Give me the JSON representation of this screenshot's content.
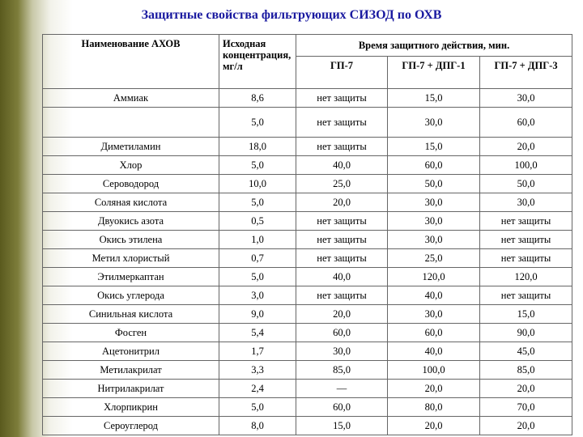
{
  "title": "Защитные свойства фильтрующих СИЗОД по ОХВ",
  "header": {
    "col_name": "Наименование АХОВ",
    "col_conc": "Исходная концентрация, мг/л",
    "col_time": "Время защитного действия, мин.",
    "sub1": "ГП-7",
    "sub2": "ГП-7 + ДПГ-1",
    "sub3": "ГП-7 + ДПГ-3"
  },
  "rows": [
    {
      "name": "Аммиак",
      "conc": "8,6",
      "gp7": "нет защиты",
      "dpg1": "15,0",
      "dpg3": "30,0"
    },
    {
      "name": "",
      "conc": "5,0",
      "gp7": "нет защиты",
      "dpg1": "30,0",
      "dpg3": "60,0"
    },
    {
      "name": "Диметиламин",
      "conc": "18,0",
      "gp7": "нет защиты",
      "dpg1": "15,0",
      "dpg3": "20,0"
    },
    {
      "name": "Хлор",
      "conc": "5,0",
      "gp7": "40,0",
      "dpg1": "60,0",
      "dpg3": "100,0"
    },
    {
      "name": "Сероводород",
      "conc": "10,0",
      "gp7": "25,0",
      "dpg1": "50,0",
      "dpg3": "50,0"
    },
    {
      "name": "Соляная кислота",
      "conc": "5,0",
      "gp7": "20,0",
      "dpg1": "30,0",
      "dpg3": "30,0"
    },
    {
      "name": "Двуокись азота",
      "conc": "0,5",
      "gp7": "нет защиты",
      "dpg1": "30,0",
      "dpg3": "нет защиты"
    },
    {
      "name": "Окись этилена",
      "conc": "1,0",
      "gp7": "нет защиты",
      "dpg1": "30,0",
      "dpg3": "нет защиты"
    },
    {
      "name": "Метил хлористый",
      "conc": "0,7",
      "gp7": "нет защиты",
      "dpg1": "25,0",
      "dpg3": "нет защиты"
    },
    {
      "name": "Этилмеркаптан",
      "conc": "5,0",
      "gp7": "40,0",
      "dpg1": "120,0",
      "dpg3": "120,0"
    },
    {
      "name": "Окись углерода",
      "conc": "3,0",
      "gp7": "нет защиты",
      "dpg1": "40,0",
      "dpg3": "нет защиты"
    },
    {
      "name": "Синильная кислота",
      "conc": "9,0",
      "gp7": "20,0",
      "dpg1": "30,0",
      "dpg3": "15,0"
    },
    {
      "name": "Фосген",
      "conc": "5,4",
      "gp7": "60,0",
      "dpg1": "60,0",
      "dpg3": "90,0"
    },
    {
      "name": "Ацетонитрил",
      "conc": "1,7",
      "gp7": "30,0",
      "dpg1": "40,0",
      "dpg3": "45,0"
    },
    {
      "name": "Метилакрилат",
      "conc": "3,3",
      "gp7": "85,0",
      "dpg1": "100,0",
      "dpg3": "85,0"
    },
    {
      "name": "Нитрилакрилат",
      "conc": "2,4",
      "gp7": "—",
      "dpg1": "20,0",
      "dpg3": "20,0"
    },
    {
      "name": "Хлорпикрин",
      "conc": "5,0",
      "gp7": "60,0",
      "dpg1": "80,0",
      "dpg3": "70,0"
    },
    {
      "name": "Сероуглерод",
      "conc": "8,0",
      "gp7": "15,0",
      "dpg1": "20,0",
      "dpg3": "20,0"
    }
  ]
}
